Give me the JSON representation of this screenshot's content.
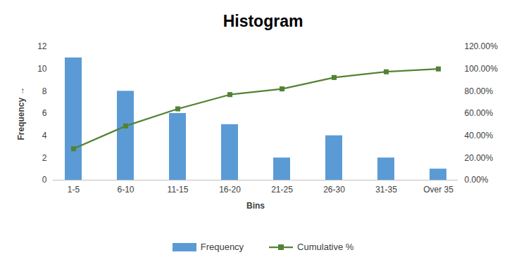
{
  "chart_data": {
    "type": "bar",
    "title": "Histogram",
    "x_label": "Bins",
    "y_label": "Frequency",
    "categories": [
      "1-5",
      "6-10",
      "11-15",
      "16-20",
      "21-25",
      "26-30",
      "31-35",
      "Over 35"
    ],
    "series": [
      {
        "name": "Frequency",
        "type": "bar",
        "color": "#5b9bd5",
        "values": [
          11,
          8,
          6,
          5,
          2,
          4,
          2,
          1
        ]
      },
      {
        "name": "Cumulative %",
        "type": "line",
        "axis": "y2",
        "color": "#548235",
        "marker": "square",
        "values": [
          28.21,
          48.72,
          64.1,
          76.92,
          82.05,
          92.31,
          97.44,
          100
        ]
      }
    ],
    "ylim": [
      0,
      12
    ],
    "yticks": [
      0,
      2,
      4,
      6,
      8,
      10,
      12
    ],
    "y2lim": [
      0,
      120
    ],
    "y2ticks": [
      {
        "value": 0,
        "label": "0.00%"
      },
      {
        "value": 20,
        "label": "20.00%"
      },
      {
        "value": 40,
        "label": "40.00%"
      },
      {
        "value": 60,
        "label": "60.00%"
      },
      {
        "value": 80,
        "label": "80.00%"
      },
      {
        "value": 100,
        "label": "100.00%"
      },
      {
        "value": 120,
        "label": "120.00%"
      }
    ],
    "grid": false,
    "legend": "bottom"
  }
}
